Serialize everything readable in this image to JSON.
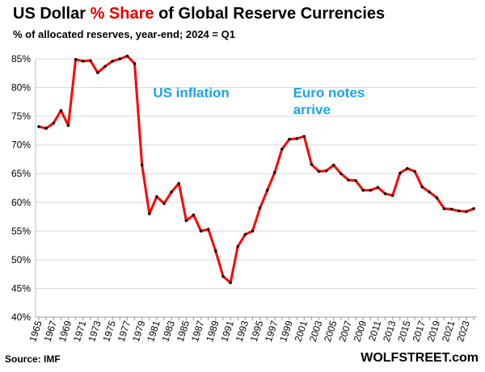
{
  "header": {
    "title_before": "US Dollar ",
    "title_highlight": "% Share",
    "title_after": " of Global Reserve Currencies",
    "subtitle": "% of allocated reserves, year-end; 2024 = Q1"
  },
  "footer": {
    "source": "Source: IMF",
    "brand": "WOLFSTREET.com"
  },
  "colors": {
    "line": "#ff0000",
    "marker": "#000000",
    "annotation": "#1aa3e8",
    "highlight": "#e00000",
    "grid": "#d9d9d9"
  },
  "chart_data": {
    "type": "line",
    "title": "US Dollar % Share of Global Reserve Currencies",
    "subtitle": "% of allocated reserves, year-end; 2024 = Q1",
    "ylim": [
      40,
      85
    ],
    "yticks": [
      40,
      45,
      50,
      55,
      60,
      65,
      70,
      75,
      80,
      85
    ],
    "ytick_suffix": "%",
    "xticks": [
      1965,
      1967,
      1969,
      1971,
      1973,
      1975,
      1977,
      1979,
      1981,
      1983,
      1985,
      1987,
      1989,
      1991,
      1993,
      1995,
      1997,
      1999,
      2001,
      2003,
      2005,
      2007,
      2009,
      2011,
      2013,
      2015,
      2017,
      2019,
      2021,
      2023
    ],
    "x": [
      1965,
      1966,
      1967,
      1968,
      1969,
      1970,
      1971,
      1972,
      1973,
      1974,
      1975,
      1976,
      1977,
      1978,
      1979,
      1980,
      1981,
      1982,
      1983,
      1984,
      1985,
      1986,
      1987,
      1988,
      1989,
      1990,
      1991,
      1992,
      1993,
      1994,
      1995,
      1996,
      1997,
      1998,
      1999,
      2000,
      2001,
      2002,
      2003,
      2004,
      2005,
      2006,
      2007,
      2008,
      2009,
      2010,
      2011,
      2012,
      2013,
      2014,
      2015,
      2016,
      2017,
      2018,
      2019,
      2020,
      2021,
      2022,
      2023,
      2024
    ],
    "series": [
      {
        "values": [
          73.2,
          72.9,
          73.8,
          76.0,
          73.4,
          84.9,
          84.6,
          84.7,
          82.6,
          83.7,
          84.6,
          85.0,
          85.5,
          84.2,
          66.5,
          58.0,
          61.0,
          59.8,
          61.8,
          63.3,
          56.8,
          57.8,
          55.0,
          55.3,
          51.5,
          47.1,
          46.0,
          52.3,
          54.4,
          55.0,
          59.0,
          62.1,
          65.2,
          69.3,
          71.0,
          71.1,
          71.5,
          66.6,
          65.4,
          65.5,
          66.5,
          65.0,
          63.9,
          63.8,
          62.1,
          62.1,
          62.6,
          61.5,
          61.2,
          65.1,
          65.9,
          65.4,
          62.7,
          61.8,
          60.8,
          58.9,
          58.8,
          58.5,
          58.4,
          58.9
        ]
      }
    ],
    "annotations": [
      {
        "lines": [
          "US inflation"
        ],
        "x": 1980.5,
        "y": 78.3
      },
      {
        "lines": [
          "Euro notes",
          "arrive"
        ],
        "x": 1999.5,
        "y": 78.3
      }
    ],
    "grid": true,
    "legend": "none"
  }
}
